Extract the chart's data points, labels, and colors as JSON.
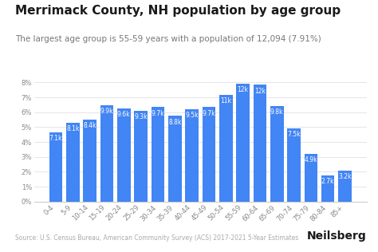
{
  "title": "Merrimack County, NH population by age group",
  "subtitle": "The largest age group is 55-59 years with a population of 12,094 (7.91%)",
  "source": "Source: U.S. Census Bureau, American Community Survey (ACS) 2017-2021 5-Year Estimates",
  "branding": "Neilsberg",
  "categories": [
    "0-4",
    "5-9",
    "10-14",
    "15-19",
    "20-24",
    "25-29",
    "30-34",
    "35-39",
    "40-44",
    "45-49",
    "50-54",
    "55-59",
    "60-64",
    "65-69",
    "70-74",
    "75-79",
    "80-84",
    "85+"
  ],
  "values_pct": [
    4.65,
    5.3,
    5.5,
    6.48,
    6.28,
    6.09,
    6.35,
    5.76,
    6.22,
    6.35,
    7.19,
    7.91,
    7.85,
    6.42,
    4.91,
    3.21,
    1.77,
    2.1
  ],
  "labels": [
    "7.1k",
    "8.1k",
    "8.4k",
    "9.9k",
    "9.6k",
    "9.3k",
    "9.7k",
    "8.8k",
    "9.5k",
    "9.7k",
    "11k",
    "12k",
    "12k",
    "9.8k",
    "7.5k",
    "4.9k",
    "2.7k",
    "3.2k"
  ],
  "bar_color": "#4285F4",
  "bg_color": "#ffffff",
  "ylim": [
    0,
    8.8
  ],
  "yticks": [
    0,
    1,
    2,
    3,
    4,
    5,
    6,
    7,
    8
  ],
  "ytick_labels": [
    "0%",
    "1%",
    "2%",
    "3%",
    "4%",
    "5%",
    "6%",
    "7%",
    "8%"
  ],
  "title_fontsize": 11,
  "subtitle_fontsize": 7.5,
  "label_fontsize": 5.5,
  "tick_fontsize": 6,
  "source_fontsize": 5.5,
  "branding_fontsize": 10
}
